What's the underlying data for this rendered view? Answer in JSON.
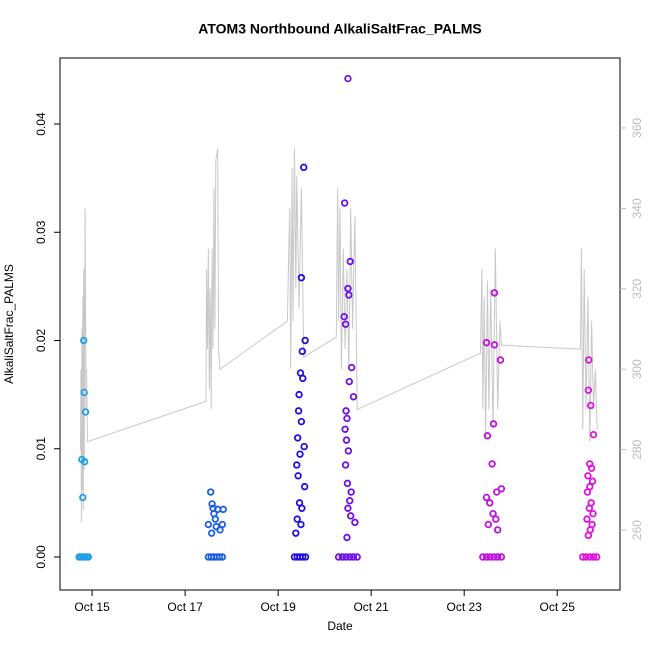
{
  "chart_data": {
    "type": "scatter",
    "title": "ATOM3 Northbound AlkaliSaltFrac_PALMS",
    "xlabel": "Date",
    "ylabel": "AlkaliSaltFrac_PALMS",
    "xlim": [
      14.31,
      26.35
    ],
    "ylim": [
      -0.00305,
      0.0461
    ],
    "y2lim": [
      245.1,
      377.4
    ],
    "xticks": [
      {
        "value": 15,
        "label": "Oct 15"
      },
      {
        "value": 17,
        "label": "Oct 17"
      },
      {
        "value": 19,
        "label": "Oct 19"
      },
      {
        "value": 21,
        "label": "Oct 21"
      },
      {
        "value": 23,
        "label": "Oct 23"
      },
      {
        "value": 25,
        "label": "Oct 25"
      }
    ],
    "yticks": [
      {
        "value": 0,
        "label": "0.00"
      },
      {
        "value": 0.01,
        "label": "0.01"
      },
      {
        "value": 0.02,
        "label": "0.02"
      },
      {
        "value": 0.03,
        "label": "0.03"
      },
      {
        "value": 0.04,
        "label": "0.04"
      }
    ],
    "y2ticks": [
      260,
      280,
      300,
      320,
      340,
      360
    ],
    "y2color": "#bbbbbb",
    "series": [
      {
        "type": "line",
        "axis": "y2",
        "color": "#c8c8c8",
        "x": [
          14.75,
          14.76,
          14.77,
          14.78,
          14.79,
          14.8,
          14.81,
          14.82,
          14.83,
          14.85,
          14.87,
          14.88,
          14.9,
          17.45,
          17.46,
          17.48,
          17.5,
          17.52,
          17.54,
          17.56,
          17.58,
          17.6,
          17.62,
          17.64,
          17.66,
          17.7,
          17.72,
          17.75,
          19.2,
          19.22,
          19.25,
          19.27,
          19.3,
          19.32,
          19.35,
          19.38,
          19.4,
          19.45,
          19.5,
          19.55,
          20.25,
          20.28,
          20.3,
          20.33,
          20.36,
          20.4,
          20.44,
          20.48,
          20.52,
          20.56,
          20.6,
          20.65,
          20.7,
          23.35,
          23.38,
          23.4,
          23.43,
          23.46,
          23.5,
          23.53,
          23.57,
          23.62,
          23.67,
          23.72,
          23.77,
          23.8,
          25.5,
          25.52,
          25.55,
          25.58,
          25.62,
          25.66,
          25.7,
          25.74,
          25.78,
          25.82,
          25.86
        ],
        "values": [
          280,
          300,
          262,
          310,
          270,
          318,
          265,
          325,
          275,
          340,
          290,
          300,
          282,
          292,
          325,
          305,
          330,
          295,
          320,
          290,
          330,
          305,
          345,
          310,
          352,
          355,
          305,
          300,
          312,
          325,
          340,
          300,
          350,
          312,
          355,
          320,
          348,
          315,
          345,
          303,
          308,
          345,
          312,
          340,
          300,
          330,
          305,
          325,
          300,
          340,
          310,
          338,
          290,
          304,
          325,
          290,
          318,
          283,
          322,
          290,
          320,
          285,
          330,
          290,
          312,
          306,
          305,
          330,
          285,
          325,
          290,
          318,
          282,
          312,
          290,
          300,
          285
        ]
      },
      {
        "color": "#1e9fe6",
        "x": [
          14.78,
          14.8,
          14.82,
          14.83,
          14.84,
          14.86,
          14.72,
          14.76,
          14.8,
          14.84,
          14.88,
          14.92
        ],
        "values": [
          0.009,
          0.0055,
          0.02,
          0.0152,
          0.0088,
          0.0134,
          0,
          0,
          0,
          0,
          0,
          0
        ]
      },
      {
        "color": "#1a5fe0",
        "x": [
          17.55,
          17.5,
          17.58,
          17.6,
          17.62,
          17.65,
          17.7,
          17.75,
          17.8,
          17.82,
          17.67,
          17.57,
          17.5,
          17.56,
          17.62,
          17.68,
          17.74,
          17.8
        ],
        "values": [
          0.006,
          0.003,
          0.0049,
          0.0045,
          0.004,
          0.0035,
          0.0044,
          0.0025,
          0.003,
          0.0044,
          0.0028,
          0.0022,
          0,
          0,
          0,
          0,
          0,
          0
        ]
      },
      {
        "color": "#2010e0",
        "x": [
          19.55,
          19.5,
          19.58,
          19.52,
          19.48,
          19.53,
          19.45,
          19.44,
          19.5,
          19.42,
          19.56,
          19.47,
          19.4,
          19.43,
          19.57,
          19.46,
          19.51,
          19.41,
          19.49,
          19.38,
          19.35,
          19.41,
          19.47,
          19.53,
          19.59
        ],
        "values": [
          0.036,
          0.0258,
          0.02,
          0.019,
          0.017,
          0.0165,
          0.015,
          0.0135,
          0.0125,
          0.011,
          0.0102,
          0.0095,
          0.0085,
          0.0075,
          0.0065,
          0.005,
          0.0045,
          0.0035,
          0.003,
          0.0022,
          0,
          0,
          0,
          0,
          0
        ]
      },
      {
        "color": "#7010e8",
        "x": [
          20.5,
          20.43,
          20.55,
          20.5,
          20.52,
          20.42,
          20.45,
          20.58,
          20.53,
          20.62,
          20.46,
          20.48,
          20.44,
          20.47,
          20.51,
          20.45,
          20.49,
          20.57,
          20.54,
          20.5,
          20.56,
          20.65,
          20.48,
          20.3,
          20.38,
          20.46,
          20.54,
          20.62,
          20.7
        ],
        "values": [
          0.0442,
          0.0327,
          0.0273,
          0.0248,
          0.0242,
          0.0222,
          0.0215,
          0.0175,
          0.0162,
          0.0148,
          0.0135,
          0.0128,
          0.0118,
          0.0108,
          0.0098,
          0.0085,
          0.0068,
          0.006,
          0.0052,
          0.0045,
          0.0038,
          0.0032,
          0.0018,
          0,
          0,
          0,
          0,
          0,
          0
        ]
      },
      {
        "color": "#c010e0",
        "x": [
          23.65,
          23.48,
          23.65,
          23.78,
          23.63,
          23.5,
          23.6,
          23.8,
          23.7,
          23.48,
          23.55,
          23.62,
          23.68,
          23.52,
          23.72,
          23.4,
          23.48,
          23.56,
          23.64,
          23.72,
          23.8
        ],
        "values": [
          0.0244,
          0.0198,
          0.0196,
          0.0182,
          0.0123,
          0.0112,
          0.0086,
          0.0063,
          0.006,
          0.0055,
          0.005,
          0.004,
          0.0035,
          0.003,
          0.0025,
          0,
          0,
          0,
          0,
          0,
          0
        ]
      },
      {
        "color": "#e010e0",
        "x": [
          25.68,
          25.67,
          25.72,
          25.78,
          25.7,
          25.74,
          25.66,
          25.76,
          25.7,
          25.65,
          25.73,
          25.69,
          25.77,
          25.64,
          25.75,
          25.71,
          25.67,
          25.55,
          25.62,
          25.7,
          25.78,
          25.85
        ],
        "values": [
          0.0182,
          0.0154,
          0.014,
          0.0113,
          0.0086,
          0.0082,
          0.0075,
          0.007,
          0.0065,
          0.006,
          0.005,
          0.0045,
          0.004,
          0.0035,
          0.003,
          0.0025,
          0.002,
          0,
          0,
          0,
          0,
          0
        ]
      }
    ]
  }
}
